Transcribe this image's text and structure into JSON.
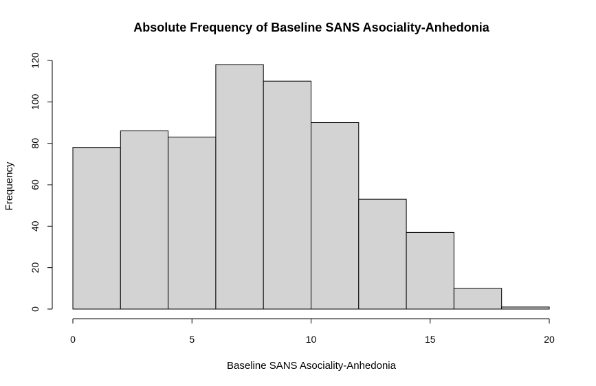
{
  "chart_data": {
    "type": "bar",
    "title": "Absolute Frequency of Baseline SANS Asociality-Anhedonia",
    "xlabel": "Baseline SANS Asociality-Anhedonia",
    "ylabel": "Frequency",
    "bins": [
      {
        "start": 0,
        "end": 2,
        "value": 78
      },
      {
        "start": 2,
        "end": 4,
        "value": 86
      },
      {
        "start": 4,
        "end": 6,
        "value": 83
      },
      {
        "start": 6,
        "end": 8,
        "value": 118
      },
      {
        "start": 8,
        "end": 10,
        "value": 110
      },
      {
        "start": 10,
        "end": 12,
        "value": 90
      },
      {
        "start": 12,
        "end": 14,
        "value": 53
      },
      {
        "start": 14,
        "end": 16,
        "value": 37
      },
      {
        "start": 16,
        "end": 18,
        "value": 10
      },
      {
        "start": 18,
        "end": 20,
        "value": 1
      }
    ],
    "xlim": [
      0,
      20
    ],
    "ylim": [
      0,
      120
    ],
    "xticks": [
      "0",
      "5",
      "10",
      "15",
      "20"
    ],
    "yticks": [
      "0",
      "20",
      "40",
      "60",
      "80",
      "100",
      "120"
    ],
    "grid": false,
    "colors": {
      "bar_fill": "#d3d3d3",
      "bar_stroke": "#000000"
    }
  }
}
